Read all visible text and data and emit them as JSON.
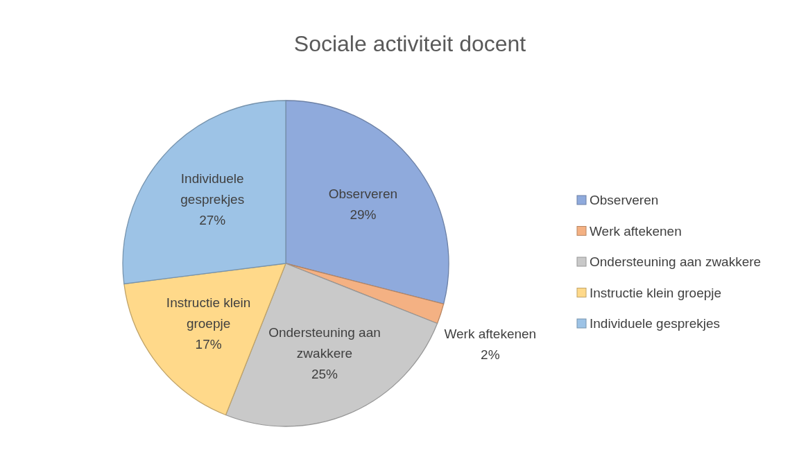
{
  "chart_data": {
    "type": "pie",
    "title": "Sociale activiteit docent",
    "categories": [
      "Observeren",
      "Werk aftekenen",
      "Ondersteuning aan zwakkere",
      "Instructie klein groepje",
      "Individuele gesprekjes"
    ],
    "values": [
      29,
      2,
      25,
      17,
      27
    ],
    "value_labels": [
      "29%",
      "2%",
      "25%",
      "17%",
      "27%"
    ],
    "colors": [
      "#8faadc",
      "#f4b183",
      "#c9c9c9",
      "#ffd98a",
      "#9dc3e6"
    ],
    "legend": "right"
  }
}
